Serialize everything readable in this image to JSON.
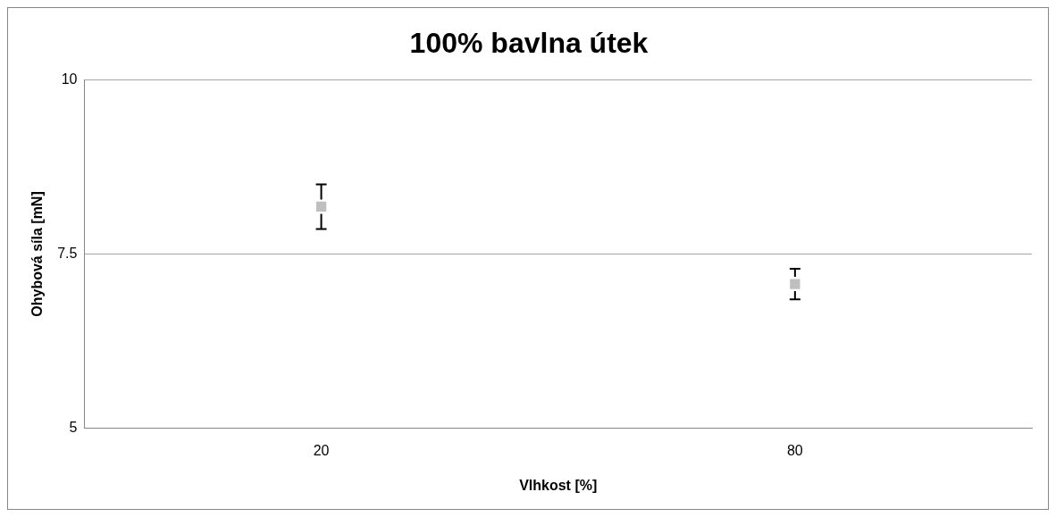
{
  "chart_data": {
    "type": "scatter",
    "title": "100% bavlna útek",
    "xlabel": "Vlhkost [%]",
    "ylabel": "Ohybová síla [mN]",
    "categories": [
      "20",
      "80"
    ],
    "series": [
      {
        "color": "#bfbfbf",
        "values": [
          8.18,
          7.07
        ],
        "errors": [
          0.32,
          0.22
        ]
      }
    ],
    "ylim": [
      5,
      10
    ],
    "yticks": [
      5,
      7.5,
      10
    ],
    "grid": "y",
    "marker": "square",
    "legend": false
  }
}
